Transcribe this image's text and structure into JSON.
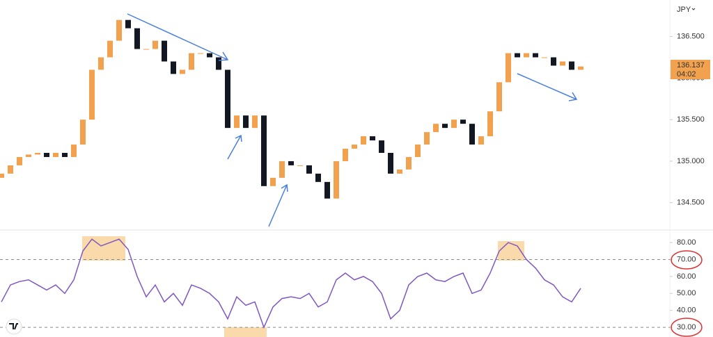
{
  "currency": "JPY",
  "chart_data": [
    {
      "type": "candlestick",
      "open": [
        134.8,
        134.85,
        134.95,
        135.05,
        135.08,
        135.1,
        135.05,
        135.1,
        135.05,
        135.2,
        135.5,
        136.1,
        136.25,
        136.45,
        136.7,
        136.6,
        136.35,
        136.35,
        136.45,
        136.2,
        136.05,
        136.1,
        136.3,
        136.3,
        136.25,
        136.1,
        135.4,
        135.55,
        135.4,
        135.55,
        134.7,
        134.8,
        135.0,
        134.95,
        134.95,
        134.85,
        134.75,
        134.55,
        135.0,
        135.15,
        135.2,
        135.3,
        135.25,
        135.1,
        134.85,
        134.9,
        135.05,
        135.2,
        135.35,
        135.45,
        135.4,
        135.5,
        135.45,
        135.2,
        135.3,
        135.6,
        135.95,
        136.3,
        136.25,
        136.3,
        136.25,
        136.25,
        136.15,
        136.2,
        136.1
      ],
      "close": [
        134.85,
        134.95,
        135.05,
        135.08,
        135.1,
        135.05,
        135.1,
        135.05,
        135.2,
        135.5,
        136.1,
        136.25,
        136.45,
        136.7,
        136.6,
        136.35,
        136.35,
        136.45,
        136.2,
        136.05,
        136.1,
        136.3,
        136.3,
        136.25,
        136.1,
        135.4,
        135.55,
        135.4,
        135.55,
        134.7,
        134.8,
        135.0,
        134.95,
        134.95,
        134.85,
        134.75,
        134.55,
        135.0,
        135.15,
        135.2,
        135.3,
        135.25,
        135.1,
        134.85,
        134.9,
        135.05,
        135.2,
        135.35,
        135.45,
        135.4,
        135.5,
        135.45,
        135.2,
        135.3,
        135.6,
        135.95,
        136.3,
        136.25,
        136.3,
        136.25,
        136.25,
        136.15,
        136.2,
        136.1,
        136.14
      ],
      "up_color": "#f2a24e",
      "down_color": "#131722",
      "ylim": [
        134.18,
        136.94
      ],
      "yticks": [
        {
          "value": 136.5,
          "label": "136.500"
        },
        {
          "value": 136,
          "label": "136.000"
        },
        {
          "value": 135.5,
          "label": "135.500"
        },
        {
          "value": 135,
          "label": "135.000"
        },
        {
          "value": 134.5,
          "label": "134.500"
        }
      ],
      "last_price": {
        "value": 136.137,
        "label": "136.137"
      },
      "countdown": "04:02"
    },
    {
      "type": "line",
      "values": [
        45,
        55,
        57,
        58,
        55,
        52,
        55,
        50,
        58,
        75,
        82,
        78,
        80,
        82,
        76,
        60,
        48,
        55,
        45,
        50,
        43,
        55,
        53,
        50,
        45,
        35,
        48,
        43,
        45,
        30,
        42,
        47,
        48,
        47,
        50,
        42,
        45,
        58,
        62,
        58,
        60,
        57,
        50,
        35,
        40,
        55,
        60,
        62,
        58,
        57,
        60,
        62,
        50,
        52,
        62,
        75,
        80,
        78,
        70,
        65,
        58,
        55,
        48,
        45,
        53
      ],
      "color": "#7e57c2",
      "ylim": [
        24.3,
        87.4
      ],
      "yticks": [
        {
          "value": 30,
          "label": "30.00"
        },
        {
          "value": 40,
          "label": "40.00"
        },
        {
          "value": 50,
          "label": "50.00"
        },
        {
          "value": 60,
          "label": "60.00"
        },
        {
          "value": 70,
          "label": "70.00"
        },
        {
          "value": 80,
          "label": "80.00"
        }
      ],
      "levels": [
        70,
        30
      ]
    }
  ]
}
